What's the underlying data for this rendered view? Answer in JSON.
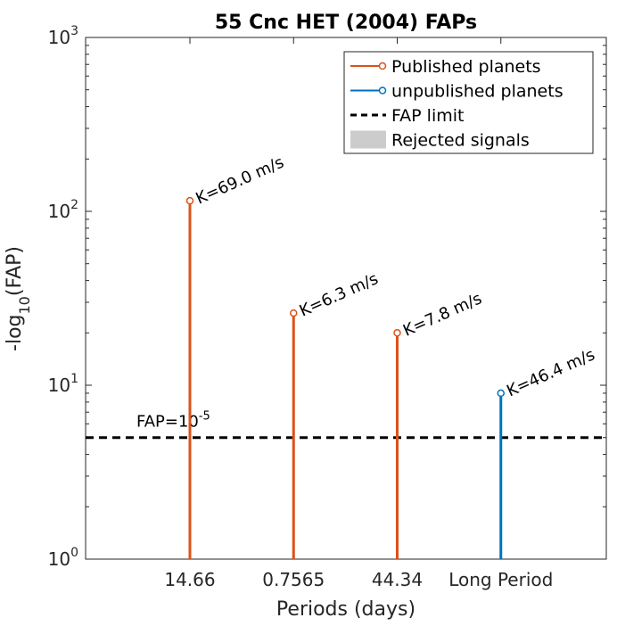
{
  "chart_data": {
    "type": "stem",
    "title": "55 Cnc HET (2004) FAPs",
    "xlabel": "Periods (days)",
    "ylabel_main": "-log",
    "ylabel_sub": "10",
    "ylabel_tail": "(FAP)",
    "yscale": "log",
    "ylim": [
      1,
      1000
    ],
    "y_ticks": [
      {
        "base": "10",
        "exp": "0",
        "value": 1
      },
      {
        "base": "10",
        "exp": "1",
        "value": 10
      },
      {
        "base": "10",
        "exp": "2",
        "value": 100
      },
      {
        "base": "10",
        "exp": "3",
        "value": 1000
      }
    ],
    "categories": [
      "14.66",
      "0.7565",
      "44.34",
      "Long Period"
    ],
    "series": [
      {
        "name": "Published planets",
        "color": "#d95319",
        "values": [
          115,
          26,
          20,
          null
        ],
        "labels": [
          "K=69.0 m/s",
          "K=6.3 m/s",
          "K=7.8 m/s",
          null
        ]
      },
      {
        "name": "unpublished planets",
        "color": "#0072bd",
        "values": [
          null,
          null,
          null,
          9
        ],
        "labels": [
          null,
          null,
          null,
          "K=46.4 m/s"
        ]
      }
    ],
    "fap_limit": {
      "value": 5,
      "label_base": "FAP=10",
      "label_exp": "-5",
      "color": "#000000"
    },
    "legend": {
      "placement": "top-right",
      "entries": [
        {
          "label": "Published planets",
          "kind": "stem",
          "color": "#d95319"
        },
        {
          "label": "unpublished planets",
          "kind": "stem",
          "color": "#0072bd"
        },
        {
          "label": "FAP limit",
          "kind": "dashed",
          "color": "#000000"
        },
        {
          "label": "Rejected signals",
          "kind": "patch",
          "color": "#cccccc"
        }
      ]
    }
  }
}
